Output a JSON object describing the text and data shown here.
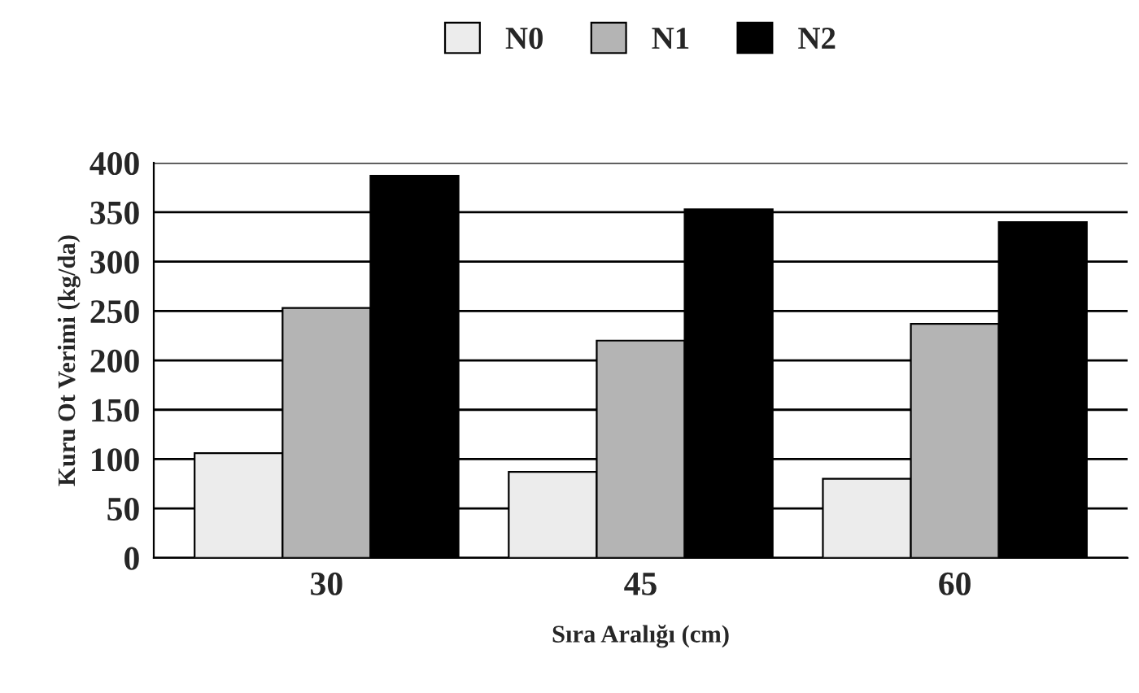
{
  "chart_data": {
    "type": "bar",
    "xlabel": "Sıra Aralığı (cm)",
    "ylabel": "Kuru Ot Verimi (kg/da)",
    "categories": [
      "30",
      "45",
      "60"
    ],
    "series": [
      {
        "name": "N0",
        "color": "#ececec",
        "values": [
          106,
          87,
          80
        ]
      },
      {
        "name": "N1",
        "color": "#b4b4b4",
        "values": [
          253,
          220,
          237
        ]
      },
      {
        "name": "N2",
        "color": "#000000",
        "values": [
          387,
          353,
          340
        ]
      }
    ],
    "ylim": [
      0,
      400
    ],
    "yticks": [
      0,
      50,
      100,
      150,
      200,
      250,
      300,
      350,
      400
    ],
    "grid": "y",
    "legend": "top"
  }
}
